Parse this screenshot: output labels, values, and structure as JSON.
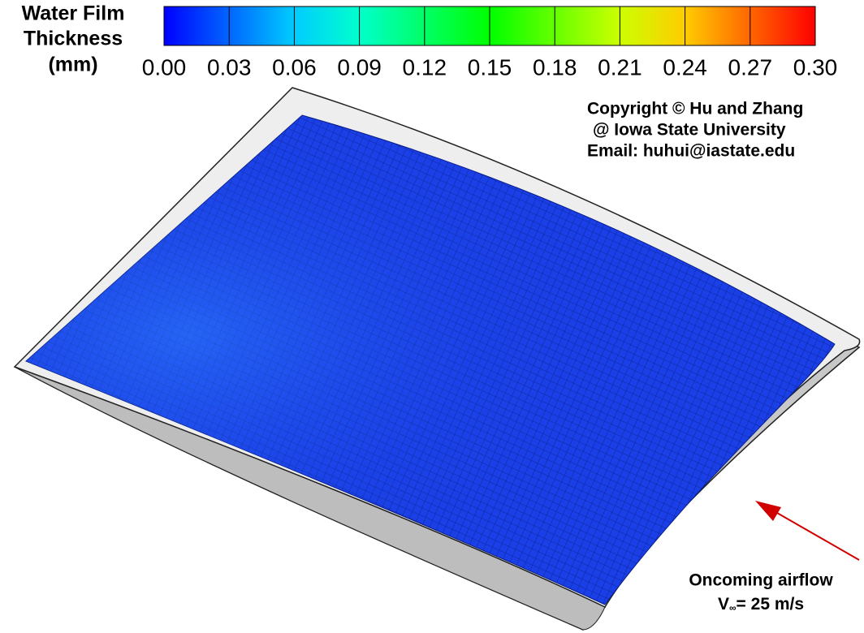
{
  "chart_data": {
    "type": "contour",
    "colorbar_label": [
      "Water Film",
      "Thickness",
      "(mm)"
    ],
    "clim": [
      0,
      0.3
    ],
    "colorbar_ticks": [
      {
        "value": 0,
        "label": "0.00"
      },
      0.03,
      0.06,
      0.09,
      0.12,
      0.15,
      0.18,
      0.21,
      0.24,
      0.27,
      {
        "value": 0.3,
        "label": "0.30"
      }
    ],
    "colormap": [
      "#0000ff",
      "#0066ff",
      "#00ccff",
      "#00ffcc",
      "#00ff66",
      "#00ff00",
      "#66ff00",
      "#ccff00",
      "#ffcc00",
      "#ff6600",
      "#ff0000"
    ],
    "annotations": {
      "copyright": [
        "Copyright © Hu and Zhang",
        "@ Iowa State University",
        "Email: huhui@iastate.edu"
      ],
      "airflow": "Oncoming airflow",
      "velocity": {
        "symbol": "V",
        "subscript": "∞",
        "text": "= 25 m/s"
      }
    }
  }
}
